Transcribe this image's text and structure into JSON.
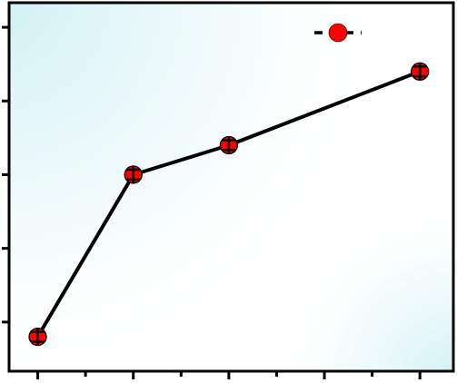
{
  "chart_data": {
    "type": "line",
    "title": "",
    "xlabel": "",
    "ylabel": "",
    "x": [
      1,
      2,
      3,
      4,
      5
    ],
    "series": [
      {
        "values": [
          1.2,
          4.5,
          5.1,
          null,
          6.6
        ],
        "error": [
          0.1,
          0.1,
          0.1,
          null,
          0.1
        ]
      }
    ],
    "xlim": [
      0.7,
      5.35
    ],
    "ylim": [
      0.5,
      8.0
    ],
    "x_ticks_major": [
      1,
      2,
      3,
      4,
      5
    ],
    "x_ticks_minor": [
      1.5,
      2.5,
      3.5,
      4.5
    ],
    "y_ticks_major": [
      1.5,
      3.0,
      4.5,
      6.0,
      7.5
    ],
    "grid": false,
    "legend": {
      "position": "top-right"
    },
    "colors": {
      "line": "#000000",
      "marker": "#ff0000",
      "marker_edge": "#000000",
      "background_glow": "#c8eef2",
      "frame": "#000000"
    }
  }
}
